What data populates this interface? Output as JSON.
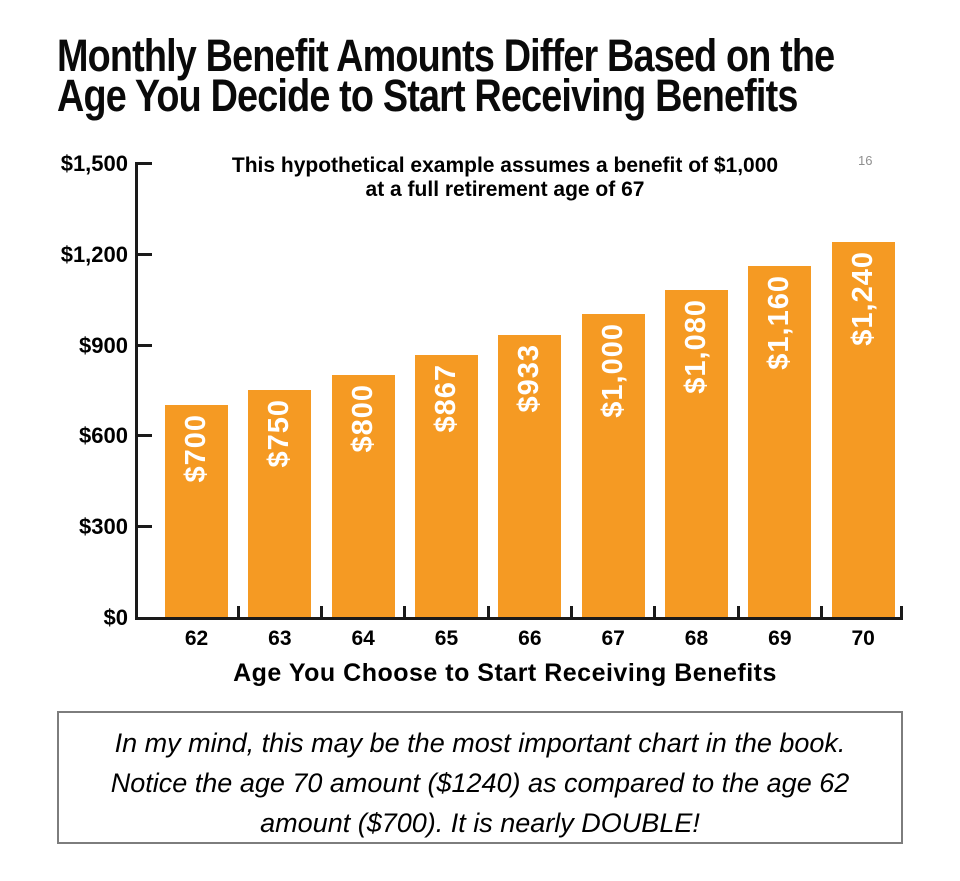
{
  "page": {
    "title_line1": "Monthly Benefit Amounts Differ Based on the",
    "title_line2": "Age You Decide to Start Receiving Benefits",
    "page_number": "16"
  },
  "chart_data": {
    "type": "bar",
    "title": "This hypothetical example assumes a benefit of $1,000 at a full retirement age of 67",
    "subtitle_line1": "This hypothetical example assumes a benefit of $1,000",
    "subtitle_line2": "at a full retirement age of 67",
    "categories": [
      "62",
      "63",
      "64",
      "65",
      "66",
      "67",
      "68",
      "69",
      "70"
    ],
    "values": [
      700,
      750,
      800,
      867,
      933,
      1000,
      1080,
      1160,
      1240
    ],
    "bar_labels": [
      "$700",
      "$750",
      "$800",
      "$867",
      "$933",
      "$1,000",
      "$1,080",
      "$1,160",
      "$1,240"
    ],
    "xlabel": "Age You Choose to Start Receiving Benefits",
    "ylabel": "",
    "ylim": [
      0,
      1500
    ],
    "ytick_step": 300,
    "ytick_labels": [
      "$0",
      "$300",
      "$600",
      "$900",
      "$1,200",
      "$1,500"
    ],
    "grid": false,
    "legend": false,
    "bar_color": "#F59A23",
    "bar_value_label_color": "#FFFFFF",
    "axis_color": "#1A1A1A"
  },
  "note": {
    "line1": "In my mind, this may be the most important chart in the book.",
    "line2": "Notice the age 70 amount ($1240) as compared to the age 62",
    "line3": "amount ($700). It is nearly DOUBLE!"
  }
}
